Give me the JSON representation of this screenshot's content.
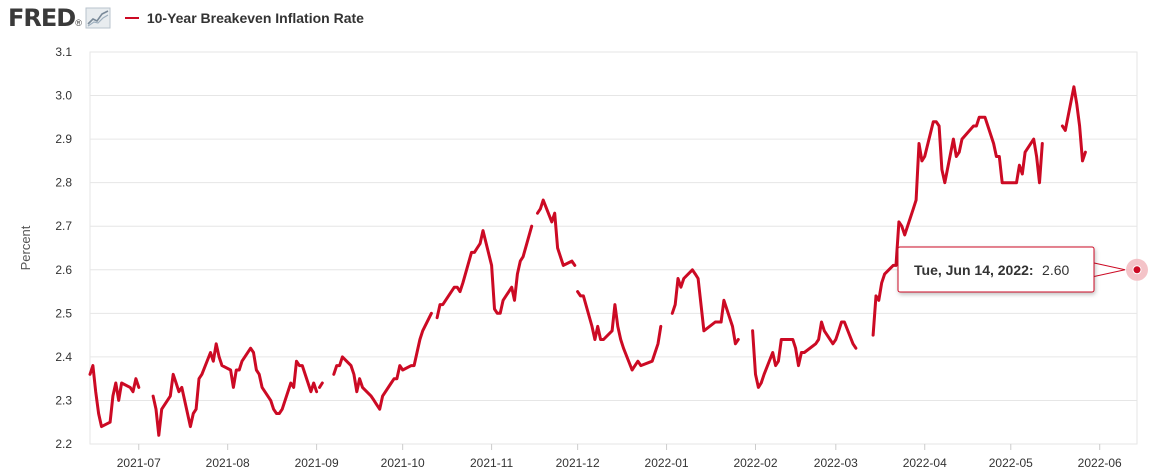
{
  "header": {
    "logo_text": "FRED",
    "logo_mark": "®",
    "logo_icon": "trend-line-icon"
  },
  "colors": {
    "series": "#cc0a24",
    "grid": "#e6e6e6",
    "frame": "#e6e6e6",
    "tooltip_border": "#cc0a24",
    "marker_halo": "#f2b8be"
  },
  "tooltip": {
    "label": "Tue, Jun 14, 2022:",
    "value": "2.60"
  },
  "chart_data": {
    "type": "line",
    "ylabel": "Percent",
    "ylim": [
      2.2,
      3.1
    ],
    "yticks": [
      "2.2",
      "2.3",
      "2.4",
      "2.5",
      "2.6",
      "2.7",
      "2.8",
      "2.9",
      "3.0",
      "3.1"
    ],
    "xlim": [
      "2021-06-14",
      "2022-06-14"
    ],
    "xticks": [
      "2021-07",
      "2021-08",
      "2021-09",
      "2021-10",
      "2021-11",
      "2021-12",
      "2022-01",
      "2022-02",
      "2022-03",
      "2022-04",
      "2022-05",
      "2022-06"
    ],
    "grid": "horizontal",
    "series": [
      {
        "name": "10-Year Breakeven Inflation Rate",
        "segments": [
          [
            [
              "2021-06-14",
              2.36
            ],
            [
              "2021-06-15",
              2.38
            ],
            [
              "2021-06-16",
              2.32
            ],
            [
              "2021-06-17",
              2.27
            ],
            [
              "2021-06-18",
              2.24
            ],
            [
              "2021-06-21",
              2.25
            ],
            [
              "2021-06-22",
              2.31
            ],
            [
              "2021-06-23",
              2.34
            ],
            [
              "2021-06-24",
              2.3
            ],
            [
              "2021-06-25",
              2.34
            ],
            [
              "2021-06-28",
              2.33
            ],
            [
              "2021-06-29",
              2.32
            ],
            [
              "2021-06-30",
              2.35
            ],
            [
              "2021-07-01",
              2.33
            ]
          ],
          [
            [
              "2021-07-06",
              2.31
            ],
            [
              "2021-07-07",
              2.28
            ],
            [
              "2021-07-08",
              2.22
            ],
            [
              "2021-07-09",
              2.28
            ],
            [
              "2021-07-12",
              2.31
            ],
            [
              "2021-07-13",
              2.36
            ],
            [
              "2021-07-14",
              2.34
            ],
            [
              "2021-07-15",
              2.32
            ],
            [
              "2021-07-16",
              2.33
            ],
            [
              "2021-07-19",
              2.24
            ],
            [
              "2021-07-20",
              2.27
            ],
            [
              "2021-07-21",
              2.28
            ],
            [
              "2021-07-22",
              2.35
            ],
            [
              "2021-07-23",
              2.36
            ],
            [
              "2021-07-26",
              2.41
            ],
            [
              "2021-07-27",
              2.39
            ],
            [
              "2021-07-28",
              2.43
            ],
            [
              "2021-07-29",
              2.4
            ],
            [
              "2021-07-30",
              2.38
            ],
            [
              "2021-08-02",
              2.37
            ],
            [
              "2021-08-03",
              2.33
            ],
            [
              "2021-08-04",
              2.37
            ],
            [
              "2021-08-05",
              2.37
            ],
            [
              "2021-08-06",
              2.39
            ],
            [
              "2021-08-09",
              2.42
            ],
            [
              "2021-08-10",
              2.41
            ],
            [
              "2021-08-11",
              2.37
            ],
            [
              "2021-08-12",
              2.36
            ],
            [
              "2021-08-13",
              2.33
            ],
            [
              "2021-08-16",
              2.3
            ],
            [
              "2021-08-17",
              2.28
            ],
            [
              "2021-08-18",
              2.27
            ],
            [
              "2021-08-19",
              2.27
            ],
            [
              "2021-08-20",
              2.28
            ],
            [
              "2021-08-23",
              2.34
            ],
            [
              "2021-08-24",
              2.33
            ],
            [
              "2021-08-25",
              2.39
            ],
            [
              "2021-08-26",
              2.38
            ],
            [
              "2021-08-27",
              2.38
            ],
            [
              "2021-08-30",
              2.32
            ],
            [
              "2021-08-31",
              2.34
            ],
            [
              "2021-09-01",
              2.32
            ]
          ],
          [
            [
              "2021-09-02",
              2.33
            ],
            [
              "2021-09-03",
              2.34
            ]
          ],
          [
            [
              "2021-09-07",
              2.36
            ],
            [
              "2021-09-08",
              2.38
            ],
            [
              "2021-09-09",
              2.38
            ],
            [
              "2021-09-10",
              2.4
            ],
            [
              "2021-09-13",
              2.38
            ],
            [
              "2021-09-14",
              2.36
            ],
            [
              "2021-09-15",
              2.32
            ],
            [
              "2021-09-16",
              2.35
            ],
            [
              "2021-09-17",
              2.33
            ],
            [
              "2021-09-20",
              2.31
            ],
            [
              "2021-09-21",
              2.3
            ],
            [
              "2021-09-22",
              2.29
            ],
            [
              "2021-09-23",
              2.28
            ],
            [
              "2021-09-24",
              2.31
            ],
            [
              "2021-09-27",
              2.34
            ],
            [
              "2021-09-28",
              2.35
            ],
            [
              "2021-09-29",
              2.35
            ],
            [
              "2021-09-30",
              2.38
            ],
            [
              "2021-10-01",
              2.37
            ],
            [
              "2021-10-04",
              2.38
            ],
            [
              "2021-10-05",
              2.38
            ],
            [
              "2021-10-06",
              2.41
            ],
            [
              "2021-10-07",
              2.44
            ],
            [
              "2021-10-08",
              2.46
            ],
            [
              "2021-10-11",
              2.5
            ]
          ],
          [
            [
              "2021-10-13",
              2.49
            ],
            [
              "2021-10-14",
              2.52
            ],
            [
              "2021-10-15",
              2.52
            ],
            [
              "2021-10-18",
              2.55
            ],
            [
              "2021-10-19",
              2.56
            ],
            [
              "2021-10-20",
              2.56
            ],
            [
              "2021-10-21",
              2.55
            ],
            [
              "2021-10-22",
              2.57
            ],
            [
              "2021-10-25",
              2.64
            ],
            [
              "2021-10-26",
              2.64
            ],
            [
              "2021-10-27",
              2.65
            ],
            [
              "2021-10-28",
              2.66
            ],
            [
              "2021-10-29",
              2.69
            ],
            [
              "2021-11-01",
              2.61
            ],
            [
              "2021-11-02",
              2.51
            ],
            [
              "2021-11-03",
              2.5
            ],
            [
              "2021-11-04",
              2.5
            ],
            [
              "2021-11-05",
              2.53
            ],
            [
              "2021-11-08",
              2.56
            ],
            [
              "2021-11-09",
              2.53
            ],
            [
              "2021-11-10",
              2.59
            ],
            [
              "2021-11-11",
              2.62
            ],
            [
              "2021-11-12",
              2.63
            ],
            [
              "2021-11-15",
              2.7
            ]
          ],
          [
            [
              "2021-11-17",
              2.73
            ],
            [
              "2021-11-18",
              2.74
            ],
            [
              "2021-11-19",
              2.76
            ],
            [
              "2021-11-22",
              2.71
            ],
            [
              "2021-11-23",
              2.73
            ],
            [
              "2021-11-24",
              2.65
            ],
            [
              "2021-11-26",
              2.61
            ],
            [
              "2021-11-29",
              2.62
            ],
            [
              "2021-11-30",
              2.61
            ]
          ],
          [
            [
              "2021-12-01",
              2.55
            ],
            [
              "2021-12-02",
              2.54
            ],
            [
              "2021-12-03",
              2.54
            ],
            [
              "2021-12-06",
              2.47
            ],
            [
              "2021-12-07",
              2.44
            ],
            [
              "2021-12-08",
              2.47
            ],
            [
              "2021-12-09",
              2.44
            ],
            [
              "2021-12-10",
              2.44
            ],
            [
              "2021-12-13",
              2.46
            ],
            [
              "2021-12-14",
              2.52
            ],
            [
              "2021-12-15",
              2.47
            ],
            [
              "2021-12-16",
              2.44
            ],
            [
              "2021-12-17",
              2.42
            ],
            [
              "2021-12-20",
              2.37
            ],
            [
              "2021-12-21",
              2.38
            ],
            [
              "2021-12-22",
              2.39
            ],
            [
              "2021-12-23",
              2.38
            ],
            [
              "2021-12-27",
              2.39
            ],
            [
              "2021-12-28",
              2.41
            ],
            [
              "2021-12-29",
              2.43
            ],
            [
              "2021-12-30",
              2.47
            ]
          ],
          [
            [
              "2022-01-03",
              2.5
            ],
            [
              "2022-01-04",
              2.52
            ],
            [
              "2022-01-05",
              2.58
            ],
            [
              "2022-01-06",
              2.56
            ],
            [
              "2022-01-07",
              2.58
            ],
            [
              "2022-01-10",
              2.6
            ],
            [
              "2022-01-11",
              2.59
            ],
            [
              "2022-01-12",
              2.58
            ],
            [
              "2022-01-13",
              2.52
            ],
            [
              "2022-01-14",
              2.46
            ],
            [
              "2022-01-18",
              2.48
            ],
            [
              "2022-01-19",
              2.48
            ],
            [
              "2022-01-20",
              2.48
            ],
            [
              "2022-01-21",
              2.53
            ],
            [
              "2022-01-24",
              2.47
            ],
            [
              "2022-01-25",
              2.43
            ],
            [
              "2022-01-26",
              2.44
            ]
          ],
          [
            [
              "2022-01-31",
              2.46
            ],
            [
              "2022-02-01",
              2.36
            ],
            [
              "2022-02-02",
              2.33
            ],
            [
              "2022-02-03",
              2.34
            ],
            [
              "2022-02-04",
              2.36
            ],
            [
              "2022-02-07",
              2.41
            ],
            [
              "2022-02-08",
              2.38
            ],
            [
              "2022-02-09",
              2.39
            ],
            [
              "2022-02-10",
              2.44
            ],
            [
              "2022-02-11",
              2.44
            ],
            [
              "2022-02-14",
              2.44
            ],
            [
              "2022-02-15",
              2.42
            ],
            [
              "2022-02-16",
              2.38
            ],
            [
              "2022-02-17",
              2.41
            ],
            [
              "2022-02-18",
              2.41
            ],
            [
              "2022-02-22",
              2.43
            ],
            [
              "2022-02-23",
              2.44
            ],
            [
              "2022-02-24",
              2.48
            ],
            [
              "2022-02-25",
              2.46
            ],
            [
              "2022-02-28",
              2.43
            ],
            [
              "2022-03-01",
              2.44
            ],
            [
              "2022-03-02",
              2.46
            ],
            [
              "2022-03-03",
              2.48
            ],
            [
              "2022-03-04",
              2.48
            ],
            [
              "2022-03-07",
              2.43
            ],
            [
              "2022-03-08",
              2.42
            ]
          ],
          [
            [
              "2022-03-14",
              2.45
            ],
            [
              "2022-03-15",
              2.54
            ],
            [
              "2022-03-16",
              2.53
            ],
            [
              "2022-03-17",
              2.57
            ],
            [
              "2022-03-18",
              2.59
            ],
            [
              "2022-03-21",
              2.61
            ],
            [
              "2022-03-22",
              2.61
            ],
            [
              "2022-03-23",
              2.71
            ],
            [
              "2022-03-24",
              2.7
            ],
            [
              "2022-03-25",
              2.68
            ],
            [
              "2022-03-28",
              2.74
            ],
            [
              "2022-03-29",
              2.76
            ],
            [
              "2022-03-30",
              2.89
            ],
            [
              "2022-03-31",
              2.85
            ],
            [
              "2022-04-01",
              2.86
            ],
            [
              "2022-04-04",
              2.94
            ],
            [
              "2022-04-05",
              2.94
            ],
            [
              "2022-04-06",
              2.93
            ],
            [
              "2022-04-07",
              2.83
            ],
            [
              "2022-04-08",
              2.8
            ],
            [
              "2022-04-11",
              2.9
            ],
            [
              "2022-04-12",
              2.86
            ],
            [
              "2022-04-13",
              2.87
            ],
            [
              "2022-04-14",
              2.9
            ],
            [
              "2022-04-18",
              2.93
            ],
            [
              "2022-04-19",
              2.93
            ],
            [
              "2022-04-20",
              2.95
            ],
            [
              "2022-04-21",
              2.95
            ],
            [
              "2022-04-22",
              2.95
            ],
            [
              "2022-04-25",
              2.89
            ],
            [
              "2022-04-26",
              2.86
            ],
            [
              "2022-04-27",
              2.86
            ],
            [
              "2022-04-28",
              2.8
            ],
            [
              "2022-04-29",
              2.8
            ],
            [
              "2022-05-02",
              2.8
            ],
            [
              "2022-05-03",
              2.8
            ],
            [
              "2022-05-04",
              2.84
            ],
            [
              "2022-05-05",
              2.82
            ],
            [
              "2022-05-06",
              2.87
            ],
            [
              "2022-05-09",
              2.9
            ],
            [
              "2022-05-10",
              2.86
            ],
            [
              "2022-05-11",
              2.8
            ],
            [
              "2022-05-12",
              2.89
            ]
          ],
          [
            [
              "2022-05-19",
              2.93
            ],
            [
              "2022-05-20",
              2.92
            ],
            [
              "2022-05-23",
              3.02
            ],
            [
              "2022-05-24",
              2.98
            ],
            [
              "2022-05-25",
              2.93
            ],
            [
              "2022-05-26",
              2.85
            ],
            [
              "2022-05-27",
              2.87
            ]
          ]
        ]
      }
    ],
    "highlight": {
      "x": "2022-06-14",
      "y": 2.6
    }
  }
}
